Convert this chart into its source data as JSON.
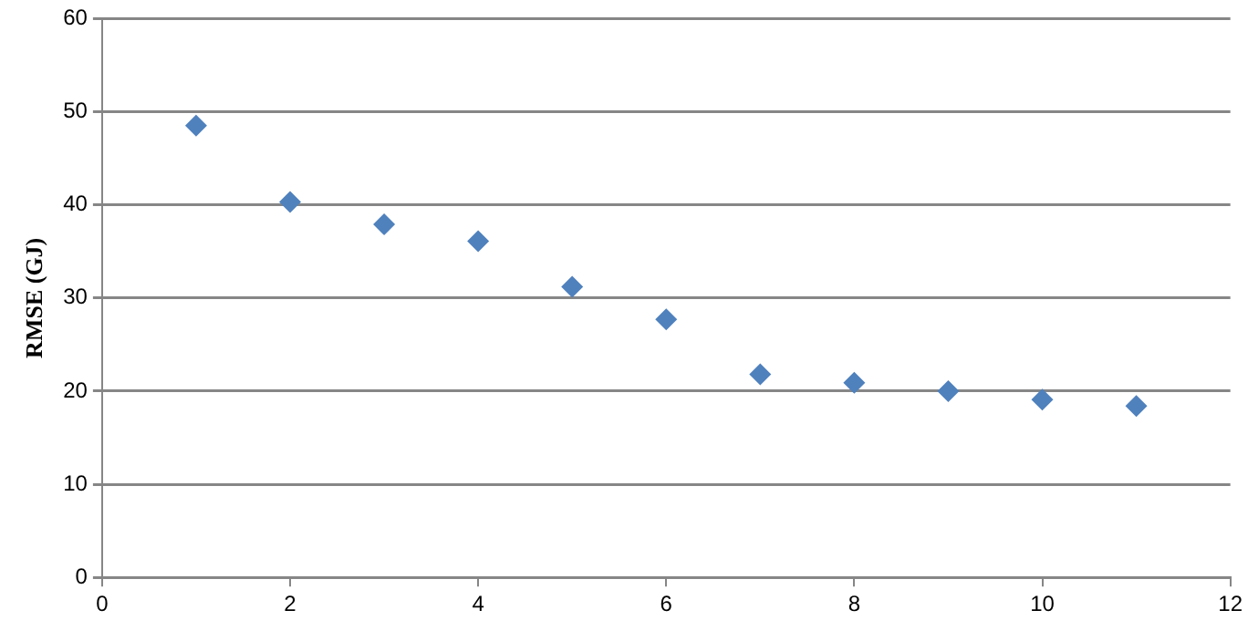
{
  "chart_data": {
    "type": "scatter",
    "ylabel": "RMSE (GJ)",
    "x": [
      1,
      2,
      3,
      4,
      5,
      6,
      7,
      8,
      9,
      10,
      11
    ],
    "series": [
      {
        "color": "#4f81bd",
        "values": [
          48.5,
          40.3,
          37.9,
          36.1,
          31.2,
          27.7,
          21.8,
          20.9,
          20.0,
          19.1,
          18.4
        ]
      }
    ],
    "xlim": [
      0,
      12
    ],
    "xticks": [
      0,
      2,
      4,
      6,
      8,
      10,
      12
    ],
    "ylim": [
      0,
      60
    ],
    "yticks": [
      0,
      10,
      20,
      30,
      40,
      50,
      60
    ],
    "grid": "y",
    "legend": false,
    "marker": "diamond"
  }
}
